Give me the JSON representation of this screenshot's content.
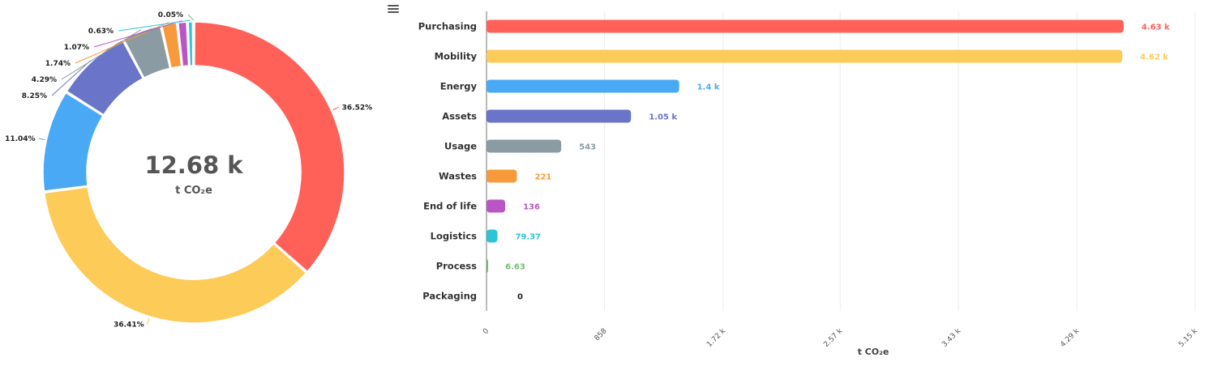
{
  "toolbar": {
    "menu_icon": "hamburger-menu-icon"
  },
  "center": {
    "total": "12.68 k",
    "unit": "t CO₂e"
  },
  "chart_data": [
    {
      "type": "pie",
      "subtype": "donut",
      "center_label": "12.68 k",
      "center_sublabel": "t CO₂e",
      "slices": [
        {
          "label": "Purchasing",
          "percent": 36.52,
          "percent_label": "36.52%",
          "color": "#ff6159"
        },
        {
          "label": "Mobility",
          "percent": 36.41,
          "percent_label": "36.41%",
          "color": "#fccb58"
        },
        {
          "label": "Energy",
          "percent": 11.04,
          "percent_label": "11.04%",
          "color": "#4aa9f5"
        },
        {
          "label": "Assets",
          "percent": 8.25,
          "percent_label": "8.25%",
          "color": "#6a74c9"
        },
        {
          "label": "Usage",
          "percent": 4.29,
          "percent_label": "4.29%",
          "color": "#8a9ba4"
        },
        {
          "label": "Wastes",
          "percent": 1.74,
          "percent_label": "1.74%",
          "color": "#f79a3b"
        },
        {
          "label": "End of life",
          "percent": 1.07,
          "percent_label": "1.07%",
          "color": "#b955c5"
        },
        {
          "label": "Logistics",
          "percent": 0.63,
          "percent_label": "0.63%",
          "color": "#2ec3d7"
        },
        {
          "label": "Process",
          "percent": 0.05,
          "percent_label": "0.05%",
          "color": "#72bf6f"
        },
        {
          "label": "Packaging",
          "percent": 0,
          "percent_label": "",
          "color": "#222222"
        }
      ]
    },
    {
      "type": "bar",
      "orientation": "horizontal",
      "categories": [
        "Purchasing",
        "Mobility",
        "Energy",
        "Assets",
        "Usage",
        "Wastes",
        "End of life",
        "Logistics",
        "Process",
        "Packaging"
      ],
      "values": [
        4630,
        4620,
        1400,
        1050,
        543,
        221,
        136,
        79.37,
        6.63,
        0
      ],
      "value_labels": [
        "4.63 k",
        "4.62 k",
        "1.4 k",
        "1.05 k",
        "543",
        "221",
        "136",
        "79.37",
        "6.63",
        "0"
      ],
      "colors": [
        "#ff6159",
        "#fccb58",
        "#4aa9f5",
        "#6a74c9",
        "#8a9ba4",
        "#f79a3b",
        "#b955c5",
        "#2ec3d7",
        "#72bf6f",
        "#222222"
      ],
      "xlabel": "t CO₂e",
      "xlim": [
        0,
        5150
      ],
      "xticks": [
        0,
        858,
        1720,
        2570,
        3430,
        4290,
        5150
      ],
      "xtick_labels": [
        "0",
        "858",
        "1.72 k",
        "2.57 k",
        "3.43 k",
        "4.29 k",
        "5.15 k"
      ],
      "grid": true
    }
  ]
}
